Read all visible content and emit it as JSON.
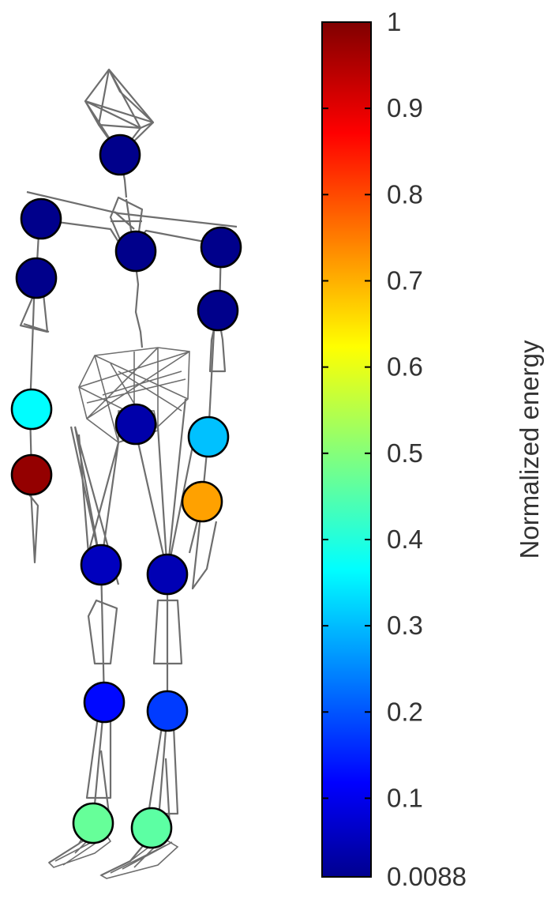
{
  "chart_data": {
    "type": "scatter",
    "description_kind": "skeleton joint energy map with colorbar",
    "colormap": "jet",
    "colorbar": {
      "label": "Normalized energy",
      "min": 0.0088,
      "max": 1,
      "ticks": [
        {
          "value": 1,
          "label": "1"
        },
        {
          "value": 0.9,
          "label": "0.9"
        },
        {
          "value": 0.8,
          "label": "0.8"
        },
        {
          "value": 0.7,
          "label": "0.7"
        },
        {
          "value": 0.6,
          "label": "0.6"
        },
        {
          "value": 0.5,
          "label": "0.5"
        },
        {
          "value": 0.4,
          "label": "0.4"
        },
        {
          "value": 0.3,
          "label": "0.3"
        },
        {
          "value": 0.2,
          "label": "0.2"
        },
        {
          "value": 0.1,
          "label": "0.1"
        },
        {
          "value": 0.0088,
          "label": "0.0088"
        }
      ]
    },
    "joints": [
      {
        "name": "head",
        "energy": 0.02
      },
      {
        "name": "right-shoulder",
        "energy": 0.02
      },
      {
        "name": "neck",
        "energy": 0.02
      },
      {
        "name": "left-shoulder",
        "energy": 0.02
      },
      {
        "name": "right-elbow",
        "energy": 0.02
      },
      {
        "name": "left-elbow",
        "energy": 0.02
      },
      {
        "name": "right-wrist",
        "energy": 0.38
      },
      {
        "name": "right-hand",
        "energy": 0.98
      },
      {
        "name": "pelvis",
        "energy": 0.05
      },
      {
        "name": "left-wrist",
        "energy": 0.32
      },
      {
        "name": "left-hand",
        "energy": 0.72
      },
      {
        "name": "right-hip",
        "energy": 0.07
      },
      {
        "name": "left-hip",
        "energy": 0.06
      },
      {
        "name": "right-knee",
        "energy": 0.14
      },
      {
        "name": "left-knee",
        "energy": 0.19
      },
      {
        "name": "right-foot",
        "energy": 0.48
      },
      {
        "name": "left-foot",
        "energy": 0.47
      }
    ]
  }
}
